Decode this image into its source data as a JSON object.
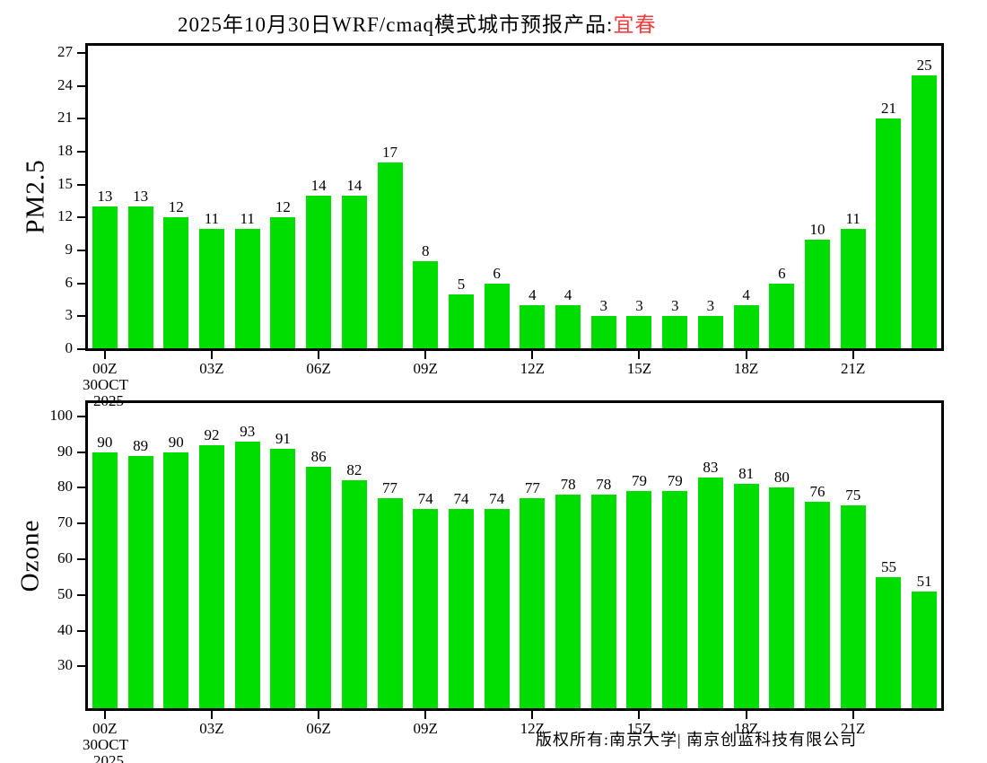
{
  "title": {
    "prefix": "2025年10月30日WRF/cmaq模式城市预报产品:",
    "city": "宜春",
    "city_color": "#fa3c3c"
  },
  "footer": {
    "copyright": "版权所有:南京大学| 南京创蓝科技有限公司"
  },
  "colors": {
    "bar": "#00dd00",
    "axis": "#000000",
    "background": "#ffffff"
  },
  "chart_data": [
    {
      "type": "bar",
      "ylabel": "PM2.5",
      "values": [
        13,
        13,
        12,
        11,
        11,
        12,
        14,
        14,
        17,
        8,
        5,
        6,
        4,
        4,
        3,
        3,
        3,
        3,
        4,
        6,
        10,
        11,
        21,
        25
      ],
      "ylim": [
        0,
        27.75
      ],
      "yticks": [
        0,
        3,
        6,
        9,
        12,
        15,
        18,
        21,
        24,
        27
      ],
      "x_tick_labels": [
        "00Z",
        "03Z",
        "06Z",
        "09Z",
        "12Z",
        "15Z",
        "18Z",
        "21Z"
      ],
      "x_tick_every_n_bars": 3,
      "x_start_date_line1": "30OCT",
      "x_start_date_line2": "2025",
      "grid": false,
      "legend": false,
      "bar_value_labels": true
    },
    {
      "type": "bar",
      "ylabel": "Ozone",
      "values": [
        90,
        89,
        90,
        92,
        93,
        91,
        86,
        82,
        77,
        74,
        74,
        74,
        77,
        78,
        78,
        79,
        79,
        83,
        81,
        80,
        76,
        75,
        55,
        51
      ],
      "ylim": [
        18,
        104
      ],
      "yticks": [
        30,
        40,
        50,
        60,
        70,
        80,
        90,
        100
      ],
      "x_tick_labels": [
        "00Z",
        "03Z",
        "06Z",
        "09Z",
        "12Z",
        "15Z",
        "18Z",
        "21Z"
      ],
      "x_tick_every_n_bars": 3,
      "x_start_date_line1": "30OCT",
      "x_start_date_line2": "2025",
      "grid": false,
      "legend": false,
      "bar_value_labels": true
    }
  ]
}
